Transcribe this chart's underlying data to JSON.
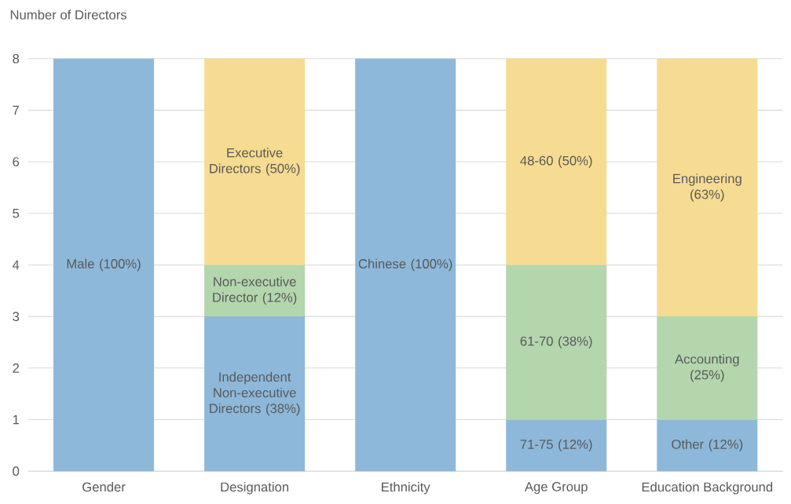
{
  "chart_data": {
    "type": "bar",
    "stacked": true,
    "ylabel": "Number of Directors",
    "categories": [
      "Gender",
      "Designation",
      "Ethnicity",
      "Age Group",
      "Education Background"
    ],
    "series": [
      {
        "color": "#8db8d9",
        "values": [
          8,
          3,
          8,
          1,
          1
        ]
      },
      {
        "color": "#b3d6ad",
        "values": [
          null,
          1,
          null,
          3,
          2
        ]
      },
      {
        "color": "#f5dc92",
        "values": [
          null,
          4,
          null,
          4,
          5
        ]
      }
    ],
    "annotations": [
      "Male (100%)",
      "Independent Non-executive Directors (38%)",
      "Non-executive Director (12%)",
      "Executive Directors (50%)",
      "Chinese (100%)",
      "71-75 (12%)",
      "61-70 (38%)",
      "48-60 (50%)",
      "Other (12%)",
      "Accounting (25%)",
      "Engineering (63%)"
    ],
    "ylim": [
      0,
      8
    ],
    "yticks": [
      0,
      1,
      2,
      3,
      4,
      5,
      6,
      7,
      8
    ],
    "grid": "y"
  }
}
